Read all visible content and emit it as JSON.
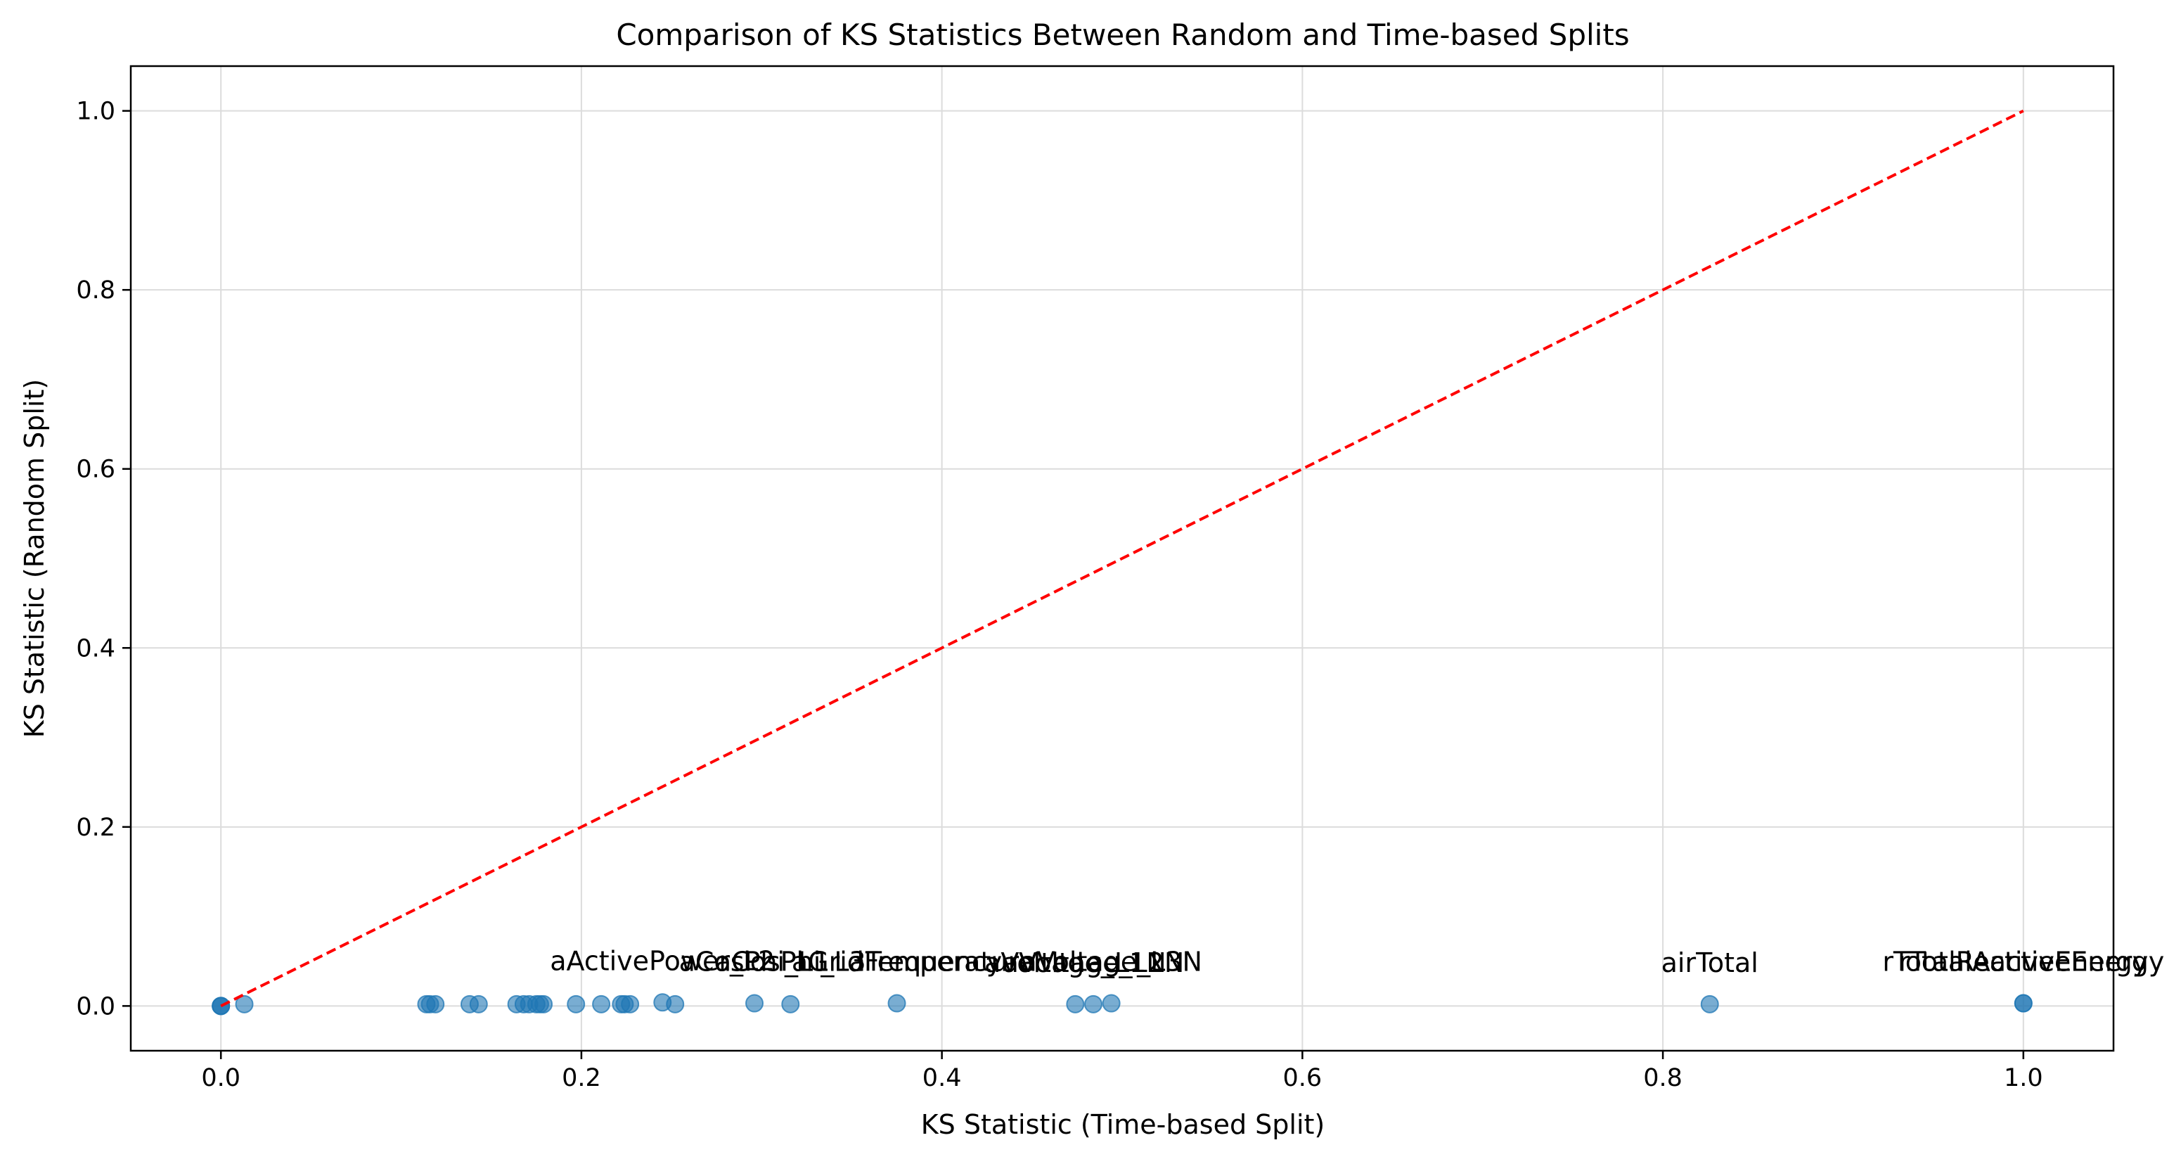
{
  "chart_data": {
    "type": "scatter",
    "title": "Comparison of KS Statistics Between Random and Time-based Splits",
    "xlabel": "KS Statistic (Time-based Split)",
    "ylabel": "KS Statistic (Random Split)",
    "xlim": [
      -0.05,
      1.05
    ],
    "ylim": [
      -0.05,
      1.05
    ],
    "xticks": [
      0.0,
      0.2,
      0.4,
      0.6,
      0.8,
      1.0
    ],
    "yticks": [
      0.0,
      0.2,
      0.4,
      0.6,
      0.8,
      1.0
    ],
    "xtick_labels": [
      "0.0",
      "0.2",
      "0.4",
      "0.6",
      "0.8",
      "1.0"
    ],
    "ytick_labels": [
      "0.0",
      "0.2",
      "0.4",
      "0.6",
      "0.8",
      "1.0"
    ],
    "grid": true,
    "point_color": "#1f77b4",
    "reference_line_color": "#ff0000",
    "reference_line": {
      "x": [
        0,
        1
      ],
      "y": [
        0,
        1
      ],
      "style": "dashed"
    },
    "points": [
      {
        "x": 0.0,
        "y": 0.0
      },
      {
        "x": 0.0,
        "y": 0.0
      },
      {
        "x": 0.0,
        "y": 0.0
      },
      {
        "x": 0.013,
        "y": 0.002
      },
      {
        "x": 0.114,
        "y": 0.002
      },
      {
        "x": 0.116,
        "y": 0.002
      },
      {
        "x": 0.119,
        "y": 0.002
      },
      {
        "x": 0.138,
        "y": 0.002
      },
      {
        "x": 0.143,
        "y": 0.002
      },
      {
        "x": 0.164,
        "y": 0.002
      },
      {
        "x": 0.168,
        "y": 0.002
      },
      {
        "x": 0.171,
        "y": 0.002
      },
      {
        "x": 0.175,
        "y": 0.002
      },
      {
        "x": 0.177,
        "y": 0.002
      },
      {
        "x": 0.179,
        "y": 0.002
      },
      {
        "x": 0.197,
        "y": 0.002
      },
      {
        "x": 0.211,
        "y": 0.002
      },
      {
        "x": 0.222,
        "y": 0.002
      },
      {
        "x": 0.224,
        "y": 0.002
      },
      {
        "x": 0.227,
        "y": 0.002
      },
      {
        "x": 0.245,
        "y": 0.004
      },
      {
        "x": 0.252,
        "y": 0.002
      },
      {
        "x": 0.296,
        "y": 0.003
      },
      {
        "x": 0.316,
        "y": 0.002
      },
      {
        "x": 0.375,
        "y": 0.003
      },
      {
        "x": 0.474,
        "y": 0.002
      },
      {
        "x": 0.484,
        "y": 0.002
      },
      {
        "x": 0.494,
        "y": 0.003
      },
      {
        "x": 0.826,
        "y": 0.002
      },
      {
        "x": 1.0,
        "y": 0.003
      },
      {
        "x": 1.0,
        "y": 0.003
      }
    ],
    "annotations": [
      {
        "text": "aActivePower_L2",
        "x": 0.245,
        "y": 0.004
      },
      {
        "text": "aCosPhi_L1",
        "x": 0.296,
        "y": 0.003
      },
      {
        "text": "aCosPhi_L3",
        "x": 0.316,
        "y": 0.003
      },
      {
        "text": "aGridFrequency",
        "x": 0.375,
        "y": 0.003
      },
      {
        "text": "aTemperature",
        "x": 0.4,
        "y": 0.003
      },
      {
        "text": "aVoltage_L1N",
        "x": 0.474,
        "y": 0.002
      },
      {
        "text": "aVoltage_L2N",
        "x": 0.484,
        "y": 0.002
      },
      {
        "text": "aVoltage_L3N",
        "x": 0.494,
        "y": 0.003
      },
      {
        "text": "airTotal",
        "x": 0.826,
        "y": 0.002
      },
      {
        "text": "rTotalActiveEnergy",
        "x": 1.0,
        "y": 0.003
      },
      {
        "text": "rTotalReactiveEnergy",
        "x": 1.0,
        "y": 0.003
      }
    ]
  }
}
